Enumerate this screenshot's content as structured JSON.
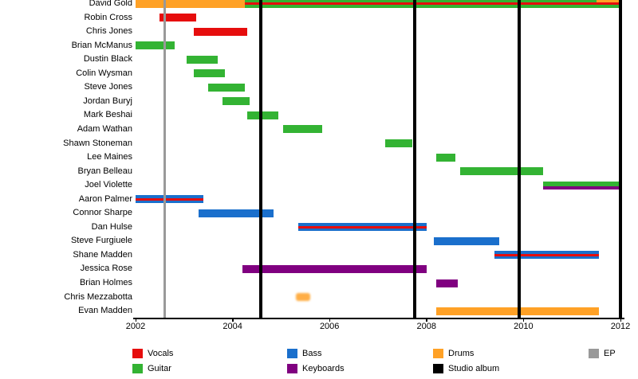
{
  "chart_data": {
    "type": "gantt-timeline",
    "description": "Band membership timeline chart",
    "members": [
      "David Gold",
      "Robin Cross",
      "Chris Jones",
      "Brian McManus",
      "Dustin Black",
      "Colin Wysman",
      "Steve Jones",
      "Jordan Buryj",
      "Mark Beshai",
      "Adam Wathan",
      "Shawn Stoneman",
      "Lee Maines",
      "Bryan Belleau",
      "Joel Violette",
      "Aaron Palmer",
      "Connor Sharpe",
      "Dan Hulse",
      "Steve Furgiuele",
      "Shane Madden",
      "Jessica Rose",
      "Brian Holmes",
      "Chris Mezzabotta",
      "Evan Madden"
    ],
    "x_range": [
      2002,
      2012
    ],
    "x_ticks": [
      2002,
      2004,
      2006,
      2008,
      2010,
      2012
    ],
    "roles": [
      {
        "id": "vocals",
        "label": "Vocals",
        "color": "#e60d0d"
      },
      {
        "id": "guitar",
        "label": "Guitar",
        "color": "#33b333"
      },
      {
        "id": "bass",
        "label": "Bass",
        "color": "#1a6fcc"
      },
      {
        "id": "keyboards",
        "label": "Keyboards",
        "color": "#800080"
      },
      {
        "id": "drums",
        "label": "Drums",
        "color": "#ffa126"
      },
      {
        "id": "album",
        "label": "Studio album",
        "color": "#000000"
      },
      {
        "id": "ep",
        "label": "EP",
        "color": "#999999"
      }
    ],
    "bars": [
      {
        "member": "David Gold",
        "role": "drums",
        "start": 2002.0,
        "end": 2004.25,
        "variant": "full"
      },
      {
        "member": "David Gold",
        "role": "guitar",
        "start": 2004.25,
        "end": 2012.0,
        "variant": "full"
      },
      {
        "member": "David Gold",
        "role": "vocals",
        "start": 2004.25,
        "end": 2012.0,
        "variant": "mid-stripe"
      },
      {
        "member": "David Gold",
        "role": "drums",
        "start": 2011.5,
        "end": 2012.0,
        "variant": "top-stripe"
      },
      {
        "member": "Robin Cross",
        "role": "vocals",
        "start": 2002.5,
        "end": 2003.25,
        "variant": "full"
      },
      {
        "member": "Chris Jones",
        "role": "vocals",
        "start": 2003.2,
        "end": 2004.3,
        "variant": "full"
      },
      {
        "member": "Brian McManus",
        "role": "guitar",
        "start": 2002.0,
        "end": 2002.8,
        "variant": "full"
      },
      {
        "member": "Dustin Black",
        "role": "guitar",
        "start": 2003.05,
        "end": 2003.7,
        "variant": "full"
      },
      {
        "member": "Colin Wysman",
        "role": "guitar",
        "start": 2003.2,
        "end": 2003.85,
        "variant": "full"
      },
      {
        "member": "Steve Jones",
        "role": "guitar",
        "start": 2003.5,
        "end": 2004.25,
        "variant": "full"
      },
      {
        "member": "Jordan Buryj",
        "role": "guitar",
        "start": 2003.8,
        "end": 2004.35,
        "variant": "full"
      },
      {
        "member": "Mark Beshai",
        "role": "guitar",
        "start": 2004.3,
        "end": 2004.95,
        "variant": "full"
      },
      {
        "member": "Adam Wathan",
        "role": "guitar",
        "start": 2005.05,
        "end": 2005.85,
        "variant": "full"
      },
      {
        "member": "Shawn Stoneman",
        "role": "guitar",
        "start": 2007.15,
        "end": 2007.7,
        "variant": "full"
      },
      {
        "member": "Lee Maines",
        "role": "guitar",
        "start": 2008.2,
        "end": 2008.6,
        "variant": "full"
      },
      {
        "member": "Bryan Belleau",
        "role": "guitar",
        "start": 2008.7,
        "end": 2010.4,
        "variant": "full"
      },
      {
        "member": "Joel Violette",
        "role": "guitar",
        "start": 2010.4,
        "end": 2012.0,
        "variant": "full"
      },
      {
        "member": "Joel Violette",
        "role": "keyboards",
        "start": 2010.4,
        "end": 2012.0,
        "variant": "bottom-stripe"
      },
      {
        "member": "Aaron Palmer",
        "role": "bass",
        "start": 2002.0,
        "end": 2003.4,
        "variant": "full"
      },
      {
        "member": "Aaron Palmer",
        "role": "vocals",
        "start": 2002.0,
        "end": 2003.4,
        "variant": "mid-stripe"
      },
      {
        "member": "Connor Sharpe",
        "role": "bass",
        "start": 2003.3,
        "end": 2004.85,
        "variant": "full"
      },
      {
        "member": "Dan Hulse",
        "role": "bass",
        "start": 2005.35,
        "end": 2008.0,
        "variant": "full"
      },
      {
        "member": "Dan Hulse",
        "role": "vocals",
        "start": 2005.35,
        "end": 2008.0,
        "variant": "mid-stripe"
      },
      {
        "member": "Steve Furgiuele",
        "role": "bass",
        "start": 2008.15,
        "end": 2009.5,
        "variant": "full"
      },
      {
        "member": "Shane Madden",
        "role": "bass",
        "start": 2009.4,
        "end": 2011.55,
        "variant": "full"
      },
      {
        "member": "Shane Madden",
        "role": "vocals",
        "start": 2009.4,
        "end": 2011.55,
        "variant": "mid-stripe"
      },
      {
        "member": "Jessica Rose",
        "role": "keyboards",
        "start": 2004.2,
        "end": 2008.0,
        "variant": "full"
      },
      {
        "member": "Brian Holmes",
        "role": "keyboards",
        "start": 2008.2,
        "end": 2008.65,
        "variant": "full"
      },
      {
        "member": "Chris Mezzabotta",
        "role": "drums",
        "start": 2005.3,
        "end": 2005.6,
        "variant": "faded"
      },
      {
        "member": "Evan Madden",
        "role": "drums",
        "start": 2008.2,
        "end": 2011.55,
        "variant": "full"
      }
    ],
    "events": [
      {
        "type": "ep",
        "year": 2002.6
      },
      {
        "type": "album",
        "year": 2004.58
      },
      {
        "type": "album",
        "year": 2007.76
      },
      {
        "type": "album",
        "year": 2009.91
      },
      {
        "type": "album",
        "year": 2012.0
      }
    ],
    "legend": {
      "rows": [
        [
          {
            "label": "Vocals",
            "role": "vocals"
          },
          {
            "label": "Bass",
            "role": "bass"
          },
          {
            "label": "Drums",
            "role": "drums"
          },
          {
            "label": "EP",
            "role": "ep"
          }
        ],
        [
          {
            "label": "Guitar",
            "role": "guitar"
          },
          {
            "label": "Keyboards",
            "role": "keyboards"
          },
          {
            "label": "Studio album",
            "role": "album"
          }
        ]
      ]
    }
  }
}
